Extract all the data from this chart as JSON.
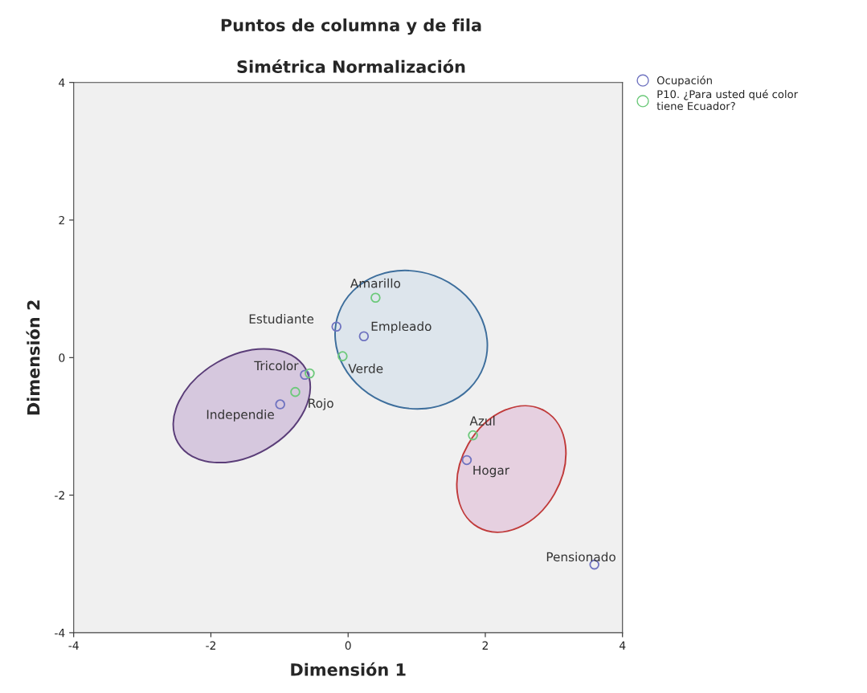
{
  "chart_data": {
    "type": "scatter",
    "title": "Puntos de columna y de fila",
    "subtitle": "Simétrica Normalización",
    "xlabel": "Dimensión 1",
    "ylabel": "Dimensión 2",
    "series": [
      {
        "name": "Ocupación",
        "color": "#6f73c0",
        "x": [
          -0.17,
          0.23,
          -0.63,
          -0.99,
          1.73,
          3.59
        ],
        "values": [
          0.45,
          0.31,
          -0.25,
          -0.68,
          -1.49,
          -3.01
        ]
      },
      {
        "name": "P10. ¿Para usted qué color\ntiene Ecuador?",
        "color": "#6cc97a",
        "x": [
          0.4,
          -0.08,
          -0.56,
          -0.77,
          1.82
        ],
        "values": [
          0.87,
          0.02,
          -0.23,
          -0.5,
          -1.13
        ]
      }
    ],
    "annotations": [
      {
        "text": "Estudiante",
        "x": -0.17,
        "y": 0.45
      },
      {
        "text": "Empleado",
        "x": 0.23,
        "y": 0.31
      },
      {
        "text": "Independie",
        "x": -0.99,
        "y": -0.68
      },
      {
        "text": "Hogar",
        "x": 1.73,
        "y": -1.49
      },
      {
        "text": "Pensionado",
        "x": 3.59,
        "y": -3.01
      },
      {
        "text": "Amarillo",
        "x": 0.4,
        "y": 0.87
      },
      {
        "text": "Verde",
        "x": -0.08,
        "y": 0.02
      },
      {
        "text": "Tricolor",
        "x": -0.56,
        "y": -0.23
      },
      {
        "text": "Rojo",
        "x": -0.77,
        "y": -0.5
      },
      {
        "text": "Azul",
        "x": 1.82,
        "y": -1.13
      }
    ],
    "xlim": [
      -4,
      4
    ],
    "ylim": [
      -4,
      4
    ],
    "xticks": [
      -4,
      -2,
      0,
      2,
      4
    ],
    "yticks": [
      -4,
      -2,
      0,
      2,
      4
    ],
    "marker": "circle",
    "grid": false,
    "legend": "top right"
  }
}
